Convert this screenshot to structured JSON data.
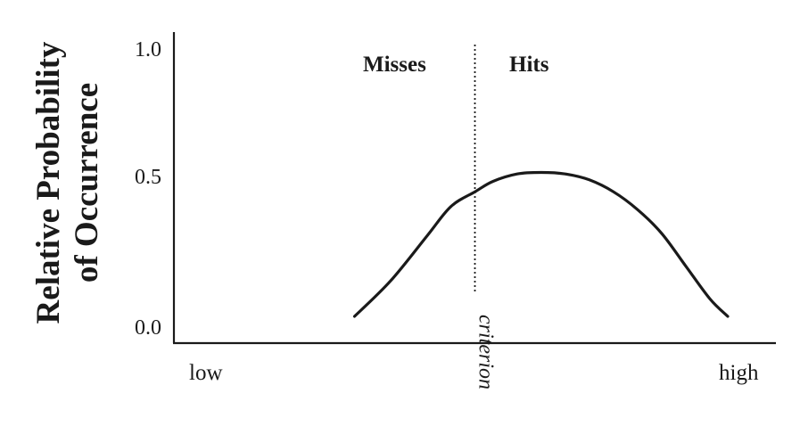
{
  "chart_data": {
    "type": "line",
    "title": "",
    "ylabel_lines": [
      "Relative Probability",
      "of Occurrence"
    ],
    "xlabel": "",
    "x_end_labels": {
      "left": "low",
      "right": "high"
    },
    "ylim": [
      0.0,
      1.0
    ],
    "yticks": [
      "0.0",
      "0.5",
      "1.0"
    ],
    "region_labels": {
      "left": "Misses",
      "right": "Hits"
    },
    "criterion": {
      "label": "criterion",
      "x": 0.5,
      "style": "dotted"
    },
    "xlim": [
      0.0,
      1.0
    ],
    "series": [
      {
        "x": [
          0.3,
          0.36,
          0.42,
          0.46,
          0.5,
          0.53,
          0.57,
          0.61,
          0.65,
          0.69,
          0.73,
          0.77,
          0.81,
          0.85,
          0.89,
          0.92
        ],
        "y": [
          0.09,
          0.21,
          0.36,
          0.46,
          0.51,
          0.545,
          0.57,
          0.575,
          0.57,
          0.55,
          0.51,
          0.45,
          0.37,
          0.26,
          0.15,
          0.09
        ]
      }
    ],
    "grid": false,
    "legend": "none"
  },
  "colors": {
    "ink": "#1a1a1a",
    "background": "#ffffff"
  }
}
